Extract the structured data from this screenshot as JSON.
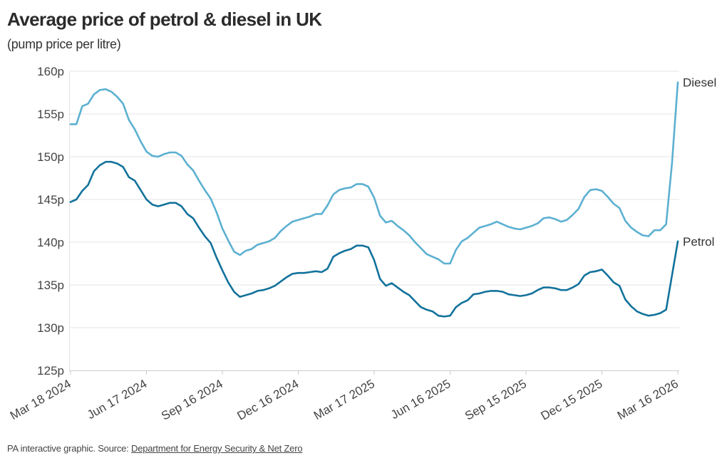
{
  "header": {
    "title": "Average price of petrol & diesel in UK",
    "subtitle": "(pump price per litre)"
  },
  "footer": {
    "prefix": "PA interactive graphic. Source: ",
    "source_link": "Department for Energy Security & Net Zero"
  },
  "chart_data": {
    "type": "line",
    "title": "Average price of petrol & diesel in UK",
    "subtitle": "(pump price per litre)",
    "xlabel": "",
    "ylabel": "",
    "x_unit": "weekly",
    "x_start": "Mar 18 2024",
    "x_end": "Mar 16 2026",
    "x_ticks": [
      "Mar 18 2024",
      "Jun 17 2024",
      "Sep 16 2024",
      "Dec 16 2024",
      "Mar 17 2025",
      "Jun 16 2025",
      "Sep 15 2025",
      "Dec 15 2025",
      "Mar 16 2026"
    ],
    "x_tick_weeks": [
      0,
      13,
      26,
      39,
      52,
      65,
      78,
      91,
      104
    ],
    "y_ticks": [
      125,
      130,
      135,
      140,
      145,
      150,
      155,
      160
    ],
    "y_tick_labels": [
      "125p",
      "130p",
      "135p",
      "140p",
      "145p",
      "150p",
      "155p",
      "160p"
    ],
    "ylim": [
      125,
      160
    ],
    "grid": true,
    "legend": "inline-right",
    "series": [
      {
        "name": "Diesel",
        "color": "#5cb0d1",
        "values": [
          153.8,
          153.8,
          155.9,
          156.2,
          157.3,
          157.8,
          157.9,
          157.6,
          157.0,
          156.2,
          154.3,
          153.2,
          151.8,
          150.6,
          150.1,
          150.0,
          150.3,
          150.5,
          150.5,
          150.1,
          149.1,
          148.4,
          147.2,
          146.1,
          145.1,
          143.5,
          141.6,
          140.2,
          138.9,
          138.5,
          139.0,
          139.2,
          139.7,
          139.9,
          140.1,
          140.5,
          141.3,
          141.9,
          142.4,
          142.6,
          142.8,
          143.0,
          143.3,
          143.3,
          144.3,
          145.6,
          146.1,
          146.3,
          146.4,
          146.8,
          146.8,
          146.5,
          145.2,
          143.1,
          142.3,
          142.5,
          141.9,
          141.4,
          140.8,
          140.0,
          139.3,
          138.6,
          138.3,
          138.0,
          137.5,
          137.5,
          139.1,
          140.1,
          140.5,
          141.1,
          141.7,
          141.9,
          142.1,
          142.4,
          142.1,
          141.8,
          141.6,
          141.5,
          141.7,
          141.9,
          142.2,
          142.8,
          142.9,
          142.7,
          142.4,
          142.6,
          143.2,
          143.9,
          145.3,
          146.1,
          146.2,
          146.0,
          145.3,
          144.5,
          144.0,
          142.5,
          141.7,
          141.2,
          140.8,
          140.7,
          141.4,
          141.4,
          142.1,
          149.2,
          158.7
        ]
      },
      {
        "name": "Petrol",
        "color": "#12729b",
        "values": [
          144.7,
          145.0,
          146.0,
          146.7,
          148.3,
          149.0,
          149.4,
          149.4,
          149.2,
          148.8,
          147.6,
          147.2,
          146.1,
          145.0,
          144.4,
          144.2,
          144.4,
          144.6,
          144.6,
          144.2,
          143.3,
          142.8,
          141.7,
          140.7,
          139.9,
          138.2,
          136.7,
          135.3,
          134.2,
          133.6,
          133.8,
          134.0,
          134.3,
          134.4,
          134.6,
          134.9,
          135.4,
          135.9,
          136.3,
          136.4,
          136.4,
          136.5,
          136.6,
          136.5,
          136.9,
          138.3,
          138.7,
          139.0,
          139.2,
          139.6,
          139.6,
          139.4,
          137.9,
          135.7,
          134.9,
          135.2,
          134.7,
          134.2,
          133.8,
          133.1,
          132.4,
          132.1,
          131.9,
          131.4,
          131.3,
          131.4,
          132.4,
          132.9,
          133.2,
          133.9,
          134.0,
          134.2,
          134.3,
          134.3,
          134.2,
          133.9,
          133.8,
          133.7,
          133.8,
          134.0,
          134.4,
          134.7,
          134.7,
          134.6,
          134.4,
          134.4,
          134.7,
          135.1,
          136.1,
          136.5,
          136.6,
          136.8,
          136.1,
          135.3,
          134.9,
          133.3,
          132.5,
          131.9,
          131.6,
          131.4,
          131.5,
          131.7,
          132.1,
          136.1,
          140.1
        ]
      }
    ]
  }
}
